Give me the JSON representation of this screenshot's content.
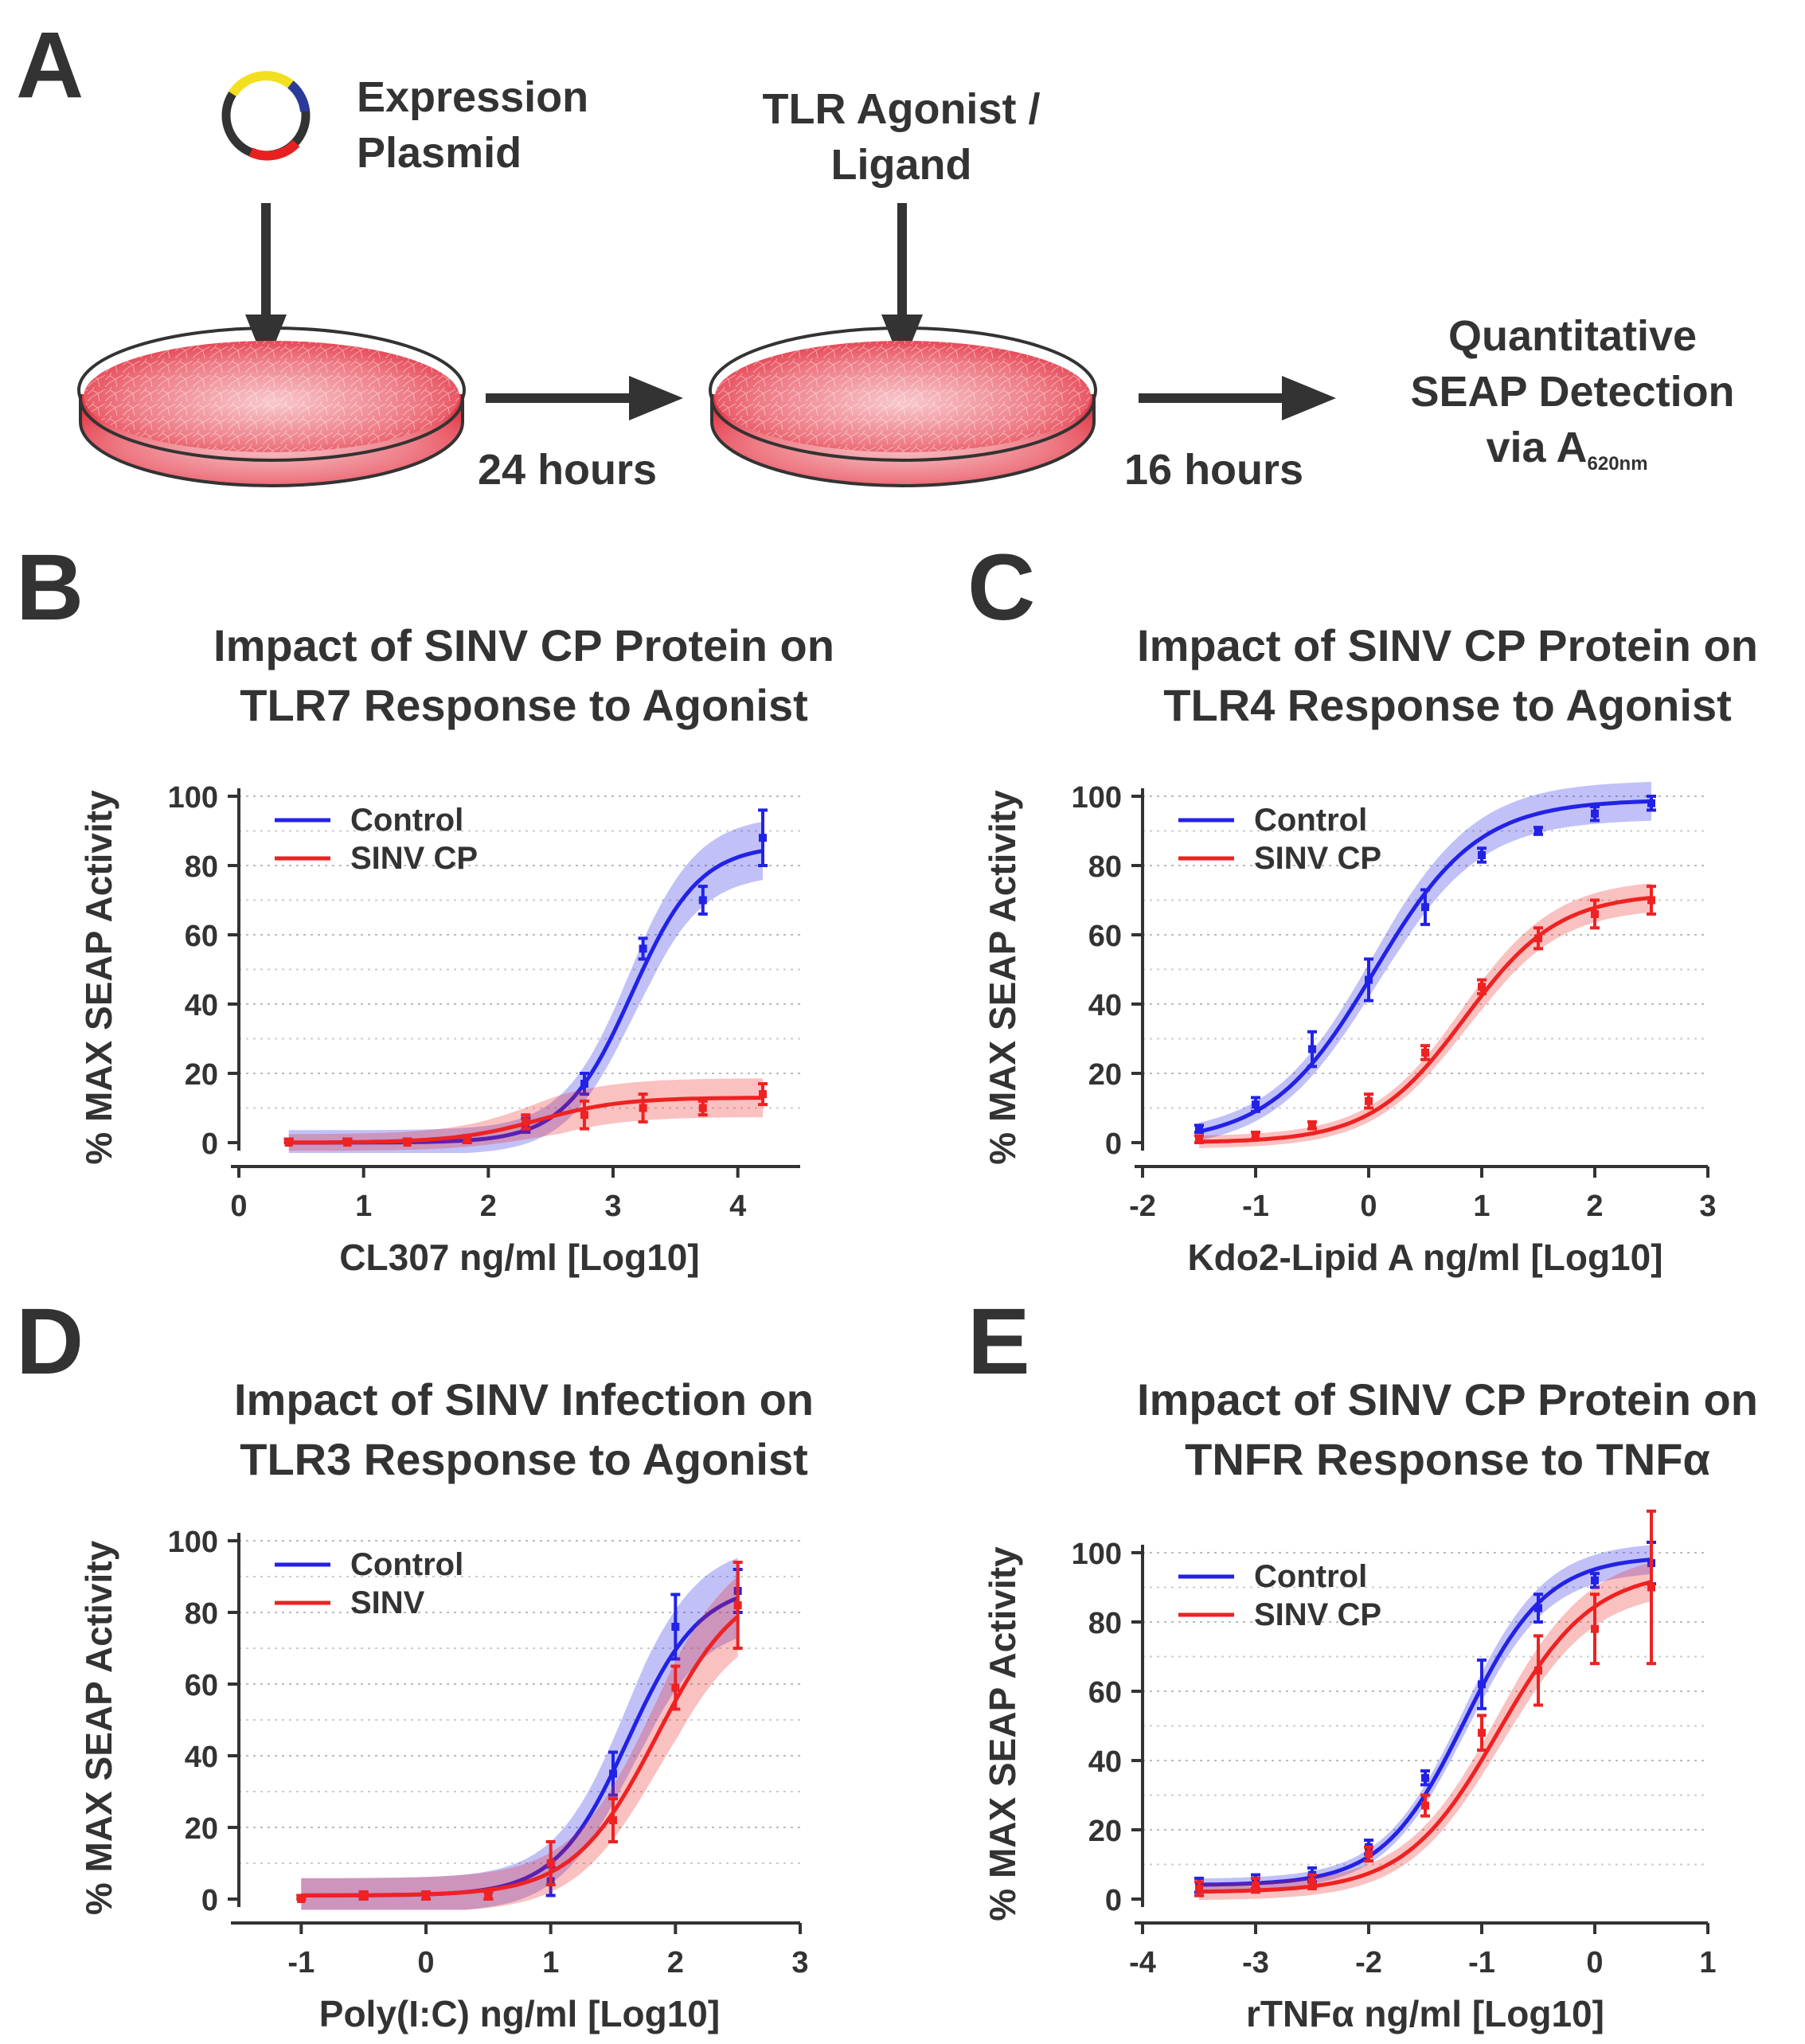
{
  "colors": {
    "control": "#2222e6",
    "sinv": "#ee2222",
    "text": "#333333",
    "dish_fill": "#e8505a",
    "dish_fill_light": "#f6c8cc"
  },
  "panelA": {
    "letter": "A",
    "plasmid_label": [
      "Expression",
      "Plasmid"
    ],
    "agonist_label": [
      "TLR Agonist /",
      "Ligand"
    ],
    "step1_time": "24 hours",
    "step2_time": "16 hours",
    "detection_label": [
      "Quantitative",
      "SEAP Detection"
    ],
    "detection_via": "via A",
    "detection_sub": "620nm"
  },
  "chart_data": [
    {
      "id": "B",
      "letter": "B",
      "type": "line",
      "title": [
        "Impact of SINV CP Protein on",
        "TLR7 Response to Agonist"
      ],
      "xlabel": "CL307 ng/ml [Log10]",
      "ylabel": "% MAX SEAP Activity",
      "xlim": [
        0,
        4.5
      ],
      "ylim": [
        0,
        100
      ],
      "xticks": [
        0,
        1,
        2,
        3,
        4
      ],
      "yticks": [
        0,
        20,
        40,
        60,
        80,
        100
      ],
      "legend": "top-left",
      "series": [
        {
          "name": "Control",
          "color_key": "control",
          "band": 6,
          "x": [
            0.4,
            0.87,
            1.35,
            1.83,
            2.3,
            2.77,
            3.24,
            3.72,
            4.2
          ],
          "y": [
            0,
            0,
            0,
            1,
            5,
            17,
            56,
            70,
            88
          ],
          "err": [
            1,
            1,
            1,
            1,
            2,
            3,
            3,
            4,
            8
          ],
          "fit": {
            "bottom": 0,
            "top": 86,
            "ec50": 3.15,
            "hill": 1.6
          }
        },
        {
          "name": "SINV CP",
          "color_key": "sinv",
          "band": 4,
          "x": [
            0.4,
            0.87,
            1.35,
            1.83,
            2.3,
            2.77,
            3.24,
            3.72,
            4.2
          ],
          "y": [
            0,
            0,
            0,
            1,
            6,
            8,
            10,
            10,
            14
          ],
          "err": [
            1,
            1,
            1,
            1,
            2,
            4,
            4,
            2,
            3
          ],
          "fit": {
            "bottom": 0,
            "top": 13,
            "ec50": 2.4,
            "hill": 1.3
          }
        }
      ]
    },
    {
      "id": "C",
      "letter": "C",
      "type": "line",
      "title": [
        "Impact of SINV CP Protein on",
        "TLR4 Response to Agonist"
      ],
      "xlabel": "Kdo2-Lipid A ng/ml [Log10]",
      "ylabel": "% MAX SEAP Activity",
      "xlim": [
        -2,
        3
      ],
      "ylim": [
        0,
        100
      ],
      "xticks": [
        -2,
        -1,
        0,
        1,
        2,
        3
      ],
      "yticks": [
        0,
        20,
        40,
        60,
        80,
        100
      ],
      "legend": "top-left",
      "series": [
        {
          "name": "Control",
          "color_key": "control",
          "band": 4,
          "x": [
            -1.5,
            -1,
            -0.5,
            0,
            0.5,
            1,
            1.5,
            2,
            2.5
          ],
          "y": [
            4,
            11,
            27,
            47,
            68,
            83,
            90,
            95,
            98
          ],
          "err": [
            1,
            2,
            5,
            6,
            5,
            2,
            1,
            2,
            2
          ],
          "fit": {
            "bottom": 0,
            "top": 99,
            "ec50": 0.05,
            "hill": 0.95
          }
        },
        {
          "name": "SINV CP",
          "color_key": "sinv",
          "band": 3,
          "x": [
            -1.5,
            -1,
            -0.5,
            0,
            0.5,
            1,
            1.5,
            2,
            2.5
          ],
          "y": [
            1,
            2,
            5,
            12,
            26,
            45,
            59,
            66,
            70
          ],
          "err": [
            1,
            1,
            1,
            2,
            2,
            2,
            3,
            4,
            4
          ],
          "fit": {
            "bottom": 0,
            "top": 72,
            "ec50": 0.85,
            "hill": 1.05
          }
        }
      ]
    },
    {
      "id": "D",
      "letter": "D",
      "type": "line",
      "title": [
        "Impact of SINV Infection on",
        "TLR3 Response to Agonist"
      ],
      "xlabel": "Poly(I:C) ng/ml [Log10]",
      "ylabel": "% MAX SEAP Activity",
      "xlim": [
        -1.5,
        3
      ],
      "ylim": [
        0,
        100
      ],
      "xticks": [
        -1,
        0,
        1,
        2,
        3
      ],
      "yticks": [
        0,
        20,
        40,
        60,
        80,
        100
      ],
      "legend": "top-left",
      "series": [
        {
          "name": "Control",
          "color_key": "control",
          "band": 8,
          "x": [
            -1,
            -0.5,
            0,
            0.5,
            1,
            1.5,
            2,
            2.5
          ],
          "y": [
            0,
            1,
            1,
            1,
            5,
            35,
            76,
            86
          ],
          "err": [
            1,
            1,
            1,
            1,
            4,
            6,
            9,
            6
          ],
          "fit": {
            "bottom": 1,
            "top": 88,
            "ec50": 1.62,
            "hill": 1.5
          }
        },
        {
          "name": "SINV",
          "color_key": "sinv",
          "band": 8,
          "x": [
            -1,
            -0.5,
            0,
            0.5,
            1,
            1.5,
            2,
            2.5
          ],
          "y": [
            0,
            1,
            1,
            1,
            10,
            22,
            59,
            82
          ],
          "err": [
            1,
            1,
            1,
            1,
            6,
            6,
            6,
            12
          ],
          "fit": {
            "bottom": 1,
            "top": 90,
            "ec50": 1.85,
            "hill": 1.3
          }
        }
      ]
    },
    {
      "id": "E",
      "letter": "E",
      "type": "line",
      "title": [
        "Impact of SINV CP Protein on",
        "TNFR Response to TNFα"
      ],
      "xlabel": "rTNFα ng/ml [Log10]",
      "ylabel": "% MAX SEAP Activity",
      "xlim": [
        -4,
        1
      ],
      "ylim": [
        0,
        100
      ],
      "xticks": [
        -4,
        -3,
        -2,
        -1,
        0,
        1
      ],
      "yticks": [
        0,
        20,
        40,
        60,
        80,
        100
      ],
      "legend": "top-left",
      "series": [
        {
          "name": "Control",
          "color_key": "control",
          "band": 3,
          "x": [
            -3.5,
            -3,
            -2.5,
            -2,
            -1.5,
            -1,
            -0.5,
            0,
            0.5
          ],
          "y": [
            4,
            5,
            7,
            15,
            35,
            62,
            84,
            92,
            97
          ],
          "err": [
            2,
            2,
            2,
            2,
            2,
            7,
            4,
            2,
            6
          ],
          "fit": {
            "bottom": 4,
            "top": 99,
            "ec50": -1.15,
            "hill": 1.2
          }
        },
        {
          "name": "SINV CP",
          "color_key": "sinv",
          "band": 4,
          "x": [
            -3.5,
            -3,
            -2.5,
            -2,
            -1.5,
            -1,
            -0.5,
            0,
            0.5
          ],
          "y": [
            3,
            4,
            5,
            13,
            27,
            48,
            66,
            78,
            90
          ],
          "err": [
            2,
            2,
            2,
            2,
            3,
            5,
            10,
            10,
            22
          ],
          "fit": {
            "bottom": 2,
            "top": 95,
            "ec50": -0.85,
            "hill": 1.05
          }
        }
      ]
    }
  ]
}
